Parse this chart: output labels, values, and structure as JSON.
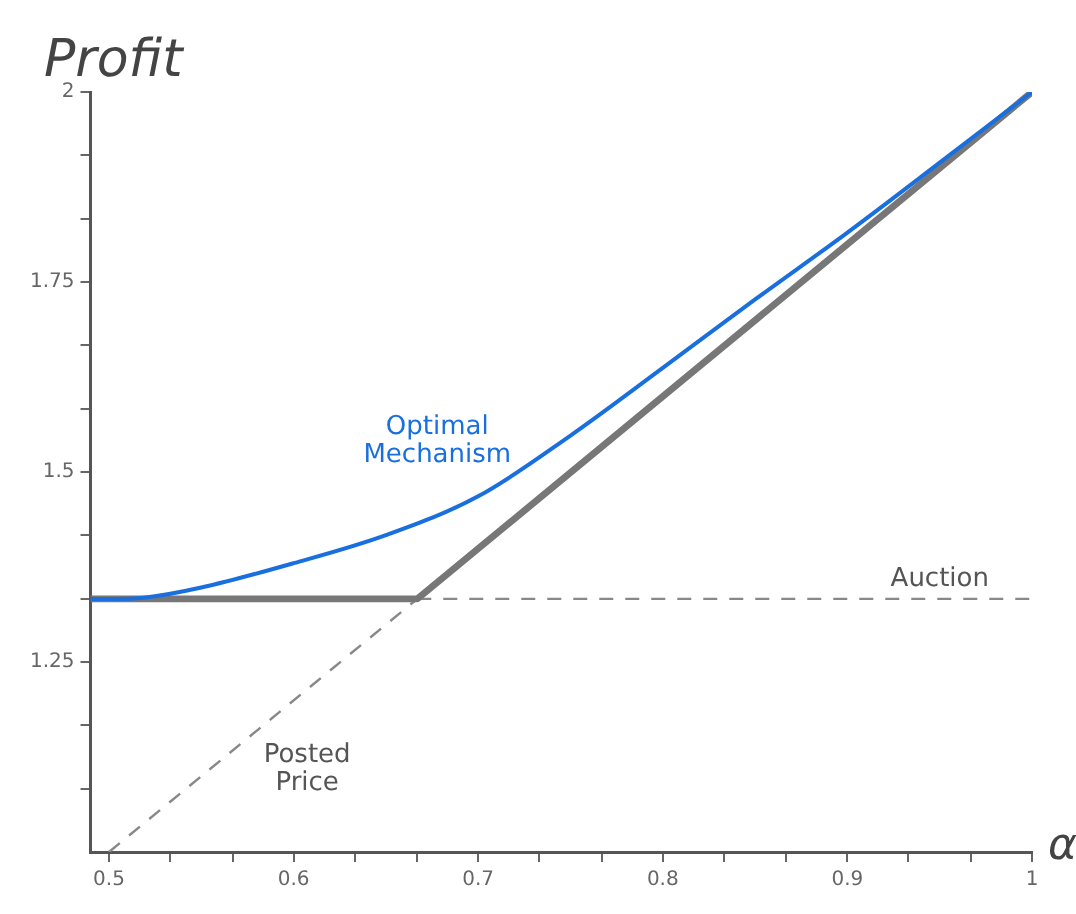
{
  "chart_data": {
    "type": "line",
    "ylabel": "Profit",
    "xlabel": "α",
    "xlim": [
      0.49,
      1
    ],
    "ylim": [
      1,
      2
    ],
    "xticks": [
      0.5,
      {
        "value": 0.533,
        "label": null
      },
      {
        "value": 0.567,
        "label": null
      },
      0.6,
      {
        "value": 0.633,
        "label": null
      },
      {
        "value": 0.667,
        "label": null
      },
      0.7,
      {
        "value": 0.733,
        "label": null
      },
      {
        "value": 0.767,
        "label": null
      },
      0.8,
      {
        "value": 0.833,
        "label": null
      },
      {
        "value": 0.867,
        "label": null
      },
      0.9,
      {
        "value": 0.933,
        "label": null
      },
      {
        "value": 0.967,
        "label": null
      },
      1
    ],
    "yticks": [
      {
        "value": 1.083,
        "label": null
      },
      {
        "value": 1.167,
        "label": null
      },
      1.25,
      {
        "value": 1.333,
        "label": null
      },
      {
        "value": 1.417,
        "label": null
      },
      1.5,
      {
        "value": 1.583,
        "label": null
      },
      {
        "value": 1.667,
        "label": null
      },
      1.75,
      {
        "value": 1.833,
        "label": null
      },
      {
        "value": 1.917,
        "label": null
      },
      2
    ],
    "grid": false,
    "legend": false,
    "marker": "none",
    "series": [
      {
        "name": "Optimal Mechanism",
        "color": "#1a6fdf",
        "line_style": "solid",
        "x": [
          0.49,
          0.5,
          0.52,
          0.55,
          0.6,
          0.65,
          0.7,
          0.75,
          0.8,
          0.85,
          0.9,
          0.95,
          1
        ],
        "values": [
          1.333,
          1.333,
          1.335,
          1.348,
          1.38,
          1.417,
          1.468,
          1.548,
          1.637,
          1.727,
          1.815,
          1.907,
          2
        ]
      },
      {
        "color": "#777777",
        "line_style": "solid",
        "x": [
          0.49,
          0.667,
          1
        ],
        "values": [
          1.333,
          1.333,
          2
        ]
      },
      {
        "name": "Auction",
        "color": "#888888",
        "line_style": "dashed",
        "x": [
          0.667,
          1
        ],
        "values": [
          1.333,
          1.333
        ]
      },
      {
        "name": "Posted Price",
        "color": "#888888",
        "line_style": "dashed",
        "x": [
          0.5,
          0.667
        ],
        "values": [
          1,
          1.333
        ]
      }
    ]
  }
}
